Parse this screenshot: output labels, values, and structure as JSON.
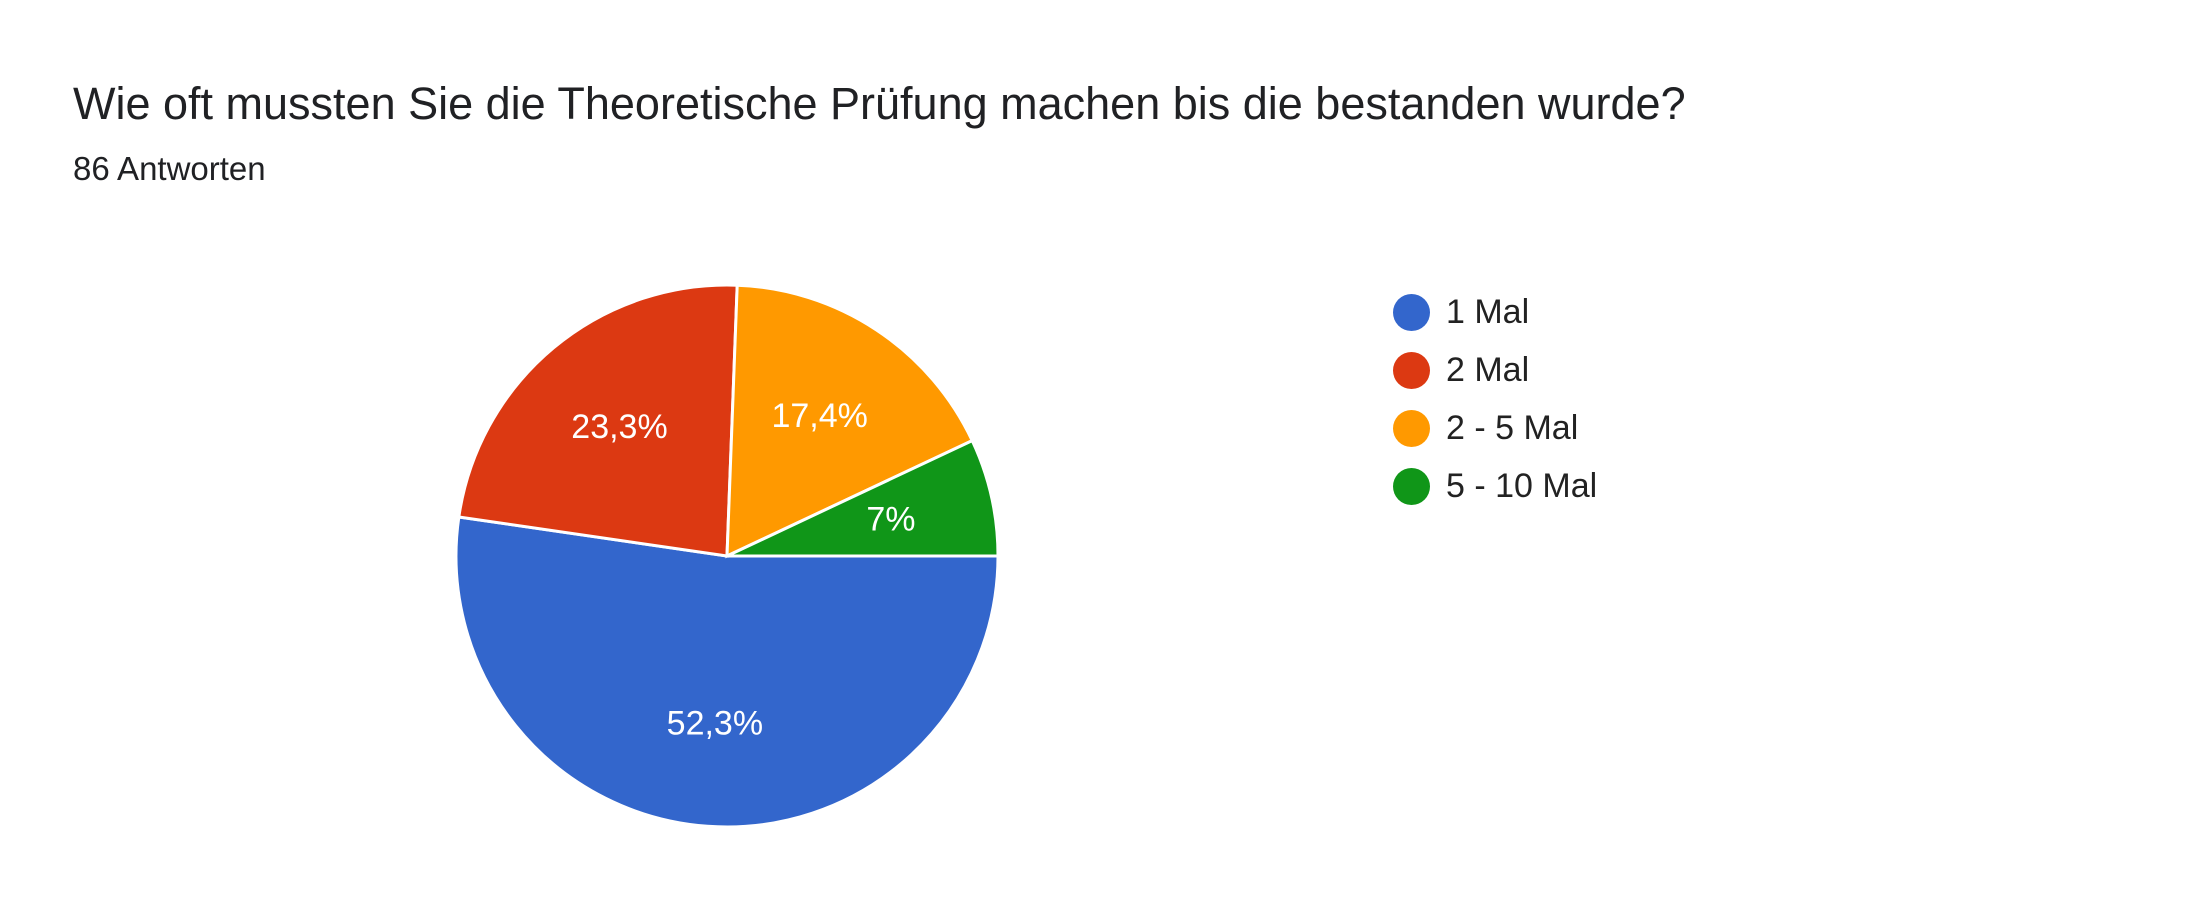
{
  "header": {
    "title": "Wie oft mussten Sie die Theoretische Prüfung machen bis die bestanden wurde?",
    "responses": "86 Antworten"
  },
  "chart_data": {
    "type": "pie",
    "title": "Wie oft mussten Sie die Theoretische Prüfung machen bis die bestanden wurde?",
    "subtitle": "86 Antworten",
    "legend_position": "right",
    "slices": [
      {
        "label": "1 Mal",
        "value": 52.3,
        "display": "52,3%",
        "color": "#3366cc"
      },
      {
        "label": "2 Mal",
        "value": 23.3,
        "display": "23,3%",
        "color": "#dc3912"
      },
      {
        "label": "2 - 5 Mal",
        "value": 17.4,
        "display": "17,4%",
        "color": "#ff9900"
      },
      {
        "label": "5 - 10 Mal",
        "value": 7.0,
        "display": "7%",
        "color": "#109618"
      }
    ]
  }
}
